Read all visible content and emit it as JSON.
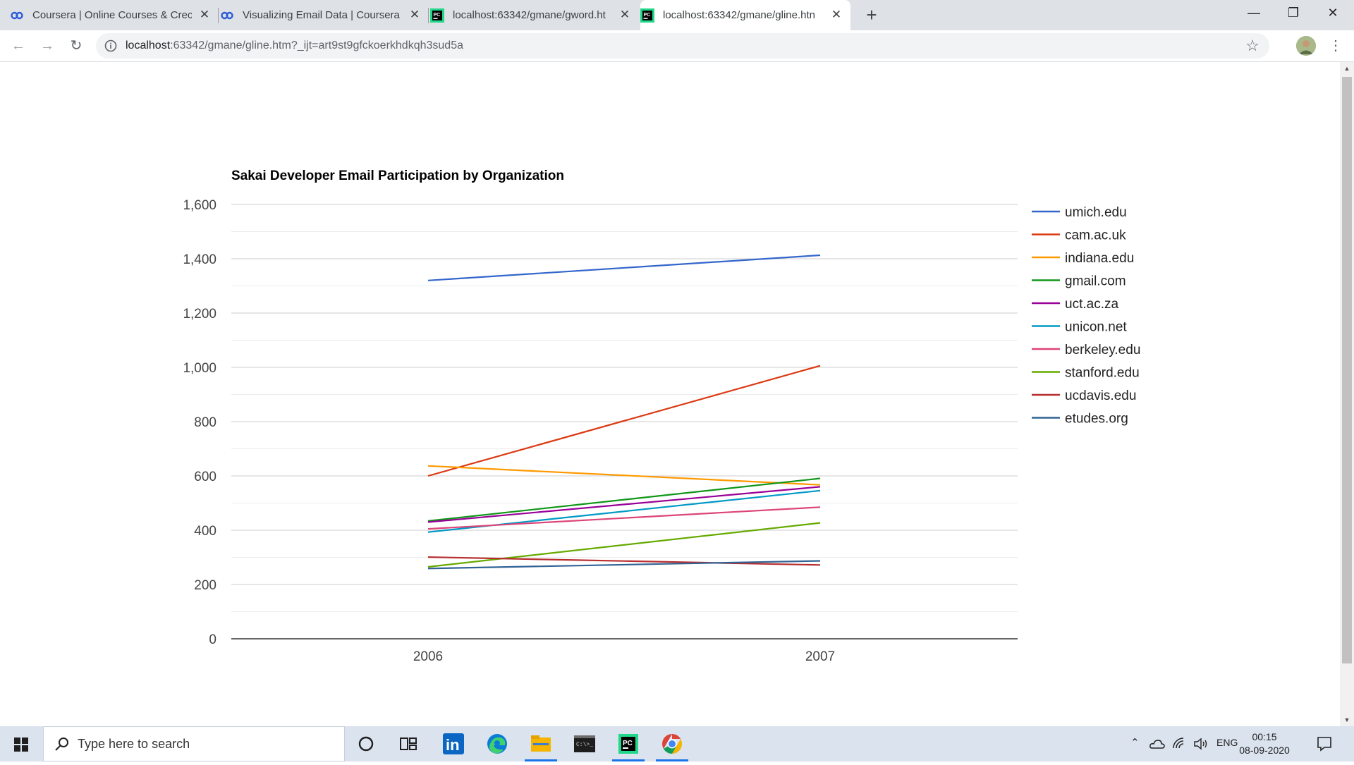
{
  "browser": {
    "tabs": [
      {
        "title": "Coursera | Online Courses & Crec",
        "icon": "coursera-icon",
        "active": false
      },
      {
        "title": "Visualizing Email Data | Coursera",
        "icon": "coursera-icon",
        "active": false
      },
      {
        "title": "localhost:63342/gmane/gword.ht",
        "icon": "pycharm-icon",
        "active": false
      },
      {
        "title": "localhost:63342/gmane/gline.htn",
        "icon": "pycharm-icon",
        "active": true
      }
    ],
    "url_host": "localhost",
    "url_rest": ":63342/gmane/gline.htm?_ijt=art9st9gfckoerkhdkqh3sud5a"
  },
  "chart_data": {
    "type": "line",
    "title": "Sakai Developer Email Participation by Organization",
    "xlabel": "",
    "ylabel": "",
    "categories": [
      "2006",
      "2007"
    ],
    "ylim": [
      0,
      1600
    ],
    "yticks": [
      0,
      200,
      400,
      600,
      800,
      1000,
      1200,
      1400,
      1600
    ],
    "ytick_labels": [
      "0",
      "200",
      "400",
      "600",
      "800",
      "1,000",
      "1,200",
      "1,400",
      "1,600"
    ],
    "grid": true,
    "legend_position": "right",
    "series": [
      {
        "name": "umich.edu",
        "color": "#3366cc",
        "values": [
          1320,
          1413
        ]
      },
      {
        "name": "cam.ac.uk",
        "color": "#dc3912",
        "values": [
          600,
          1006
        ]
      },
      {
        "name": "indiana.edu",
        "color": "#ff9900",
        "values": [
          637,
          567
        ]
      },
      {
        "name": "gmail.com",
        "color": "#109618",
        "values": [
          434,
          591
        ]
      },
      {
        "name": "uct.ac.za",
        "color": "#990099",
        "values": [
          430,
          560
        ]
      },
      {
        "name": "unicon.net",
        "color": "#0099c6",
        "values": [
          393,
          546
        ]
      },
      {
        "name": "berkeley.edu",
        "color": "#dd4477",
        "values": [
          405,
          485
        ]
      },
      {
        "name": "stanford.edu",
        "color": "#66aa00",
        "values": [
          265,
          427
        ]
      },
      {
        "name": "ucdavis.edu",
        "color": "#b82e2e",
        "values": [
          301,
          272
        ]
      },
      {
        "name": "etudes.org",
        "color": "#316395",
        "values": [
          259,
          287
        ]
      }
    ]
  },
  "taskbar": {
    "search_placeholder": "Type here to search",
    "apps": [
      "cortana-icon",
      "task-view-icon",
      "linkedin-icon",
      "edge-icon",
      "file-explorer-icon",
      "terminal-icon",
      "pycharm-icon",
      "chrome-icon"
    ],
    "language": "ENG",
    "time": "00:15",
    "date": "08-09-2020"
  }
}
